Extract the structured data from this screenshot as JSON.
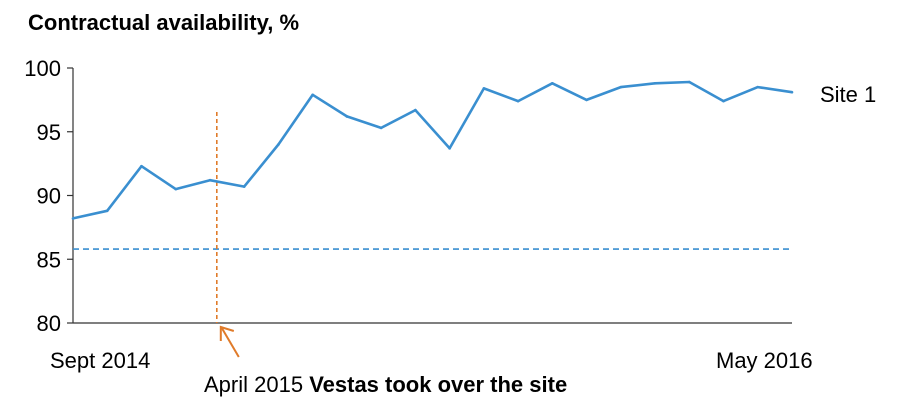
{
  "chart_data": {
    "type": "line",
    "title": "Contractual availability,  %",
    "xlabel": "",
    "ylabel": "",
    "ylim": [
      80,
      100
    ],
    "yticks": [
      80,
      85,
      90,
      95,
      100
    ],
    "x_range_labels": {
      "start": "Sept 2014",
      "end": "May 2016"
    },
    "grid": false,
    "series": [
      {
        "name": "Site 1",
        "color": "#3a8fd0",
        "values": [
          88.2,
          88.8,
          92.3,
          90.5,
          91.2,
          90.7,
          94.0,
          97.9,
          96.2,
          95.3,
          96.7,
          93.7,
          98.4,
          97.4,
          98.8,
          97.5,
          98.5,
          98.8,
          98.9,
          97.4,
          98.5,
          98.1
        ]
      }
    ],
    "reference_line": {
      "value": 85.8,
      "color": "#3a8fd0",
      "style": "dashed"
    },
    "event_marker": {
      "index": 4.2,
      "color": "#e07b2a",
      "label_regular": "April 2015 ",
      "label_bold": "Vestas took over the site"
    }
  }
}
